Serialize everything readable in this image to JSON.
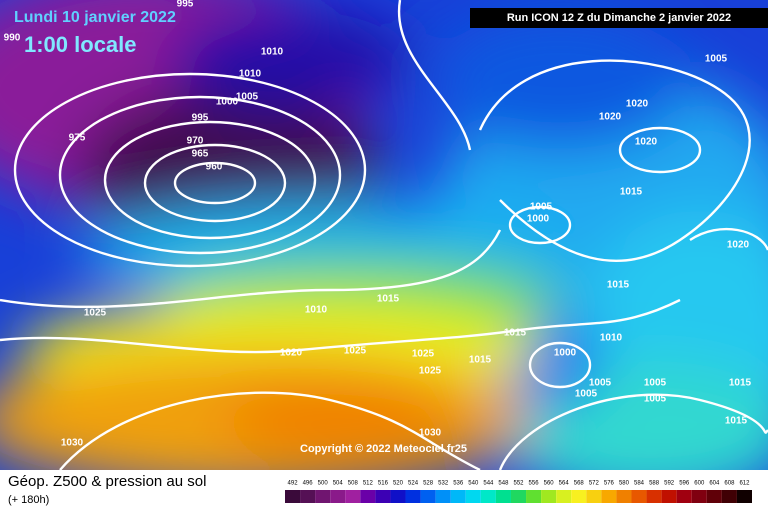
{
  "header": {
    "date": "Lundi 10 janvier 2022",
    "time": "1:00 locale",
    "run": "Run ICON 12 Z du Dimanche 2 janvier 2022"
  },
  "copyright": "Copyright © 2022 Meteociel.fr25",
  "footer": {
    "title": "Géop. Z500 & pression au sol",
    "lead": "(+ 180h)"
  },
  "isobar_labels": [
    "995",
    "990",
    "1010",
    "1010",
    "1005",
    "1000",
    "995",
    "970",
    "975",
    "965",
    "960",
    "1005",
    "1020",
    "1020",
    "1020",
    "1015",
    "1005",
    "1000",
    "1020",
    "1015",
    "1015",
    "1010",
    "1025",
    "1015",
    "1010",
    "1020",
    "1025",
    "1025",
    "1015",
    "1000",
    "1025",
    "1005",
    "1005",
    "1015",
    "1005",
    "1005",
    "1030",
    "1030",
    "1015"
  ],
  "colorbar": {
    "ticks": [
      492,
      496,
      500,
      504,
      508,
      512,
      516,
      520,
      524,
      528,
      532,
      536,
      540,
      544,
      548,
      552,
      556,
      560,
      564,
      568,
      572,
      576,
      580,
      584,
      588,
      592,
      596,
      600,
      604,
      608,
      612
    ],
    "colors": [
      "#3a0a3a",
      "#551055",
      "#701570",
      "#8a1a8a",
      "#a020a0",
      "#6a00a8",
      "#3c00b4",
      "#1010c8",
      "#0030e0",
      "#0060f0",
      "#0090f8",
      "#00b8f8",
      "#00d8f0",
      "#00e8c8",
      "#00e090",
      "#20d860",
      "#60e030",
      "#a0e820",
      "#d8f020",
      "#f8f020",
      "#f8d010",
      "#f8a800",
      "#f08000",
      "#e85800",
      "#d83000",
      "#c01000",
      "#a00010",
      "#800010",
      "#600008",
      "#400004",
      "#100000"
    ]
  }
}
